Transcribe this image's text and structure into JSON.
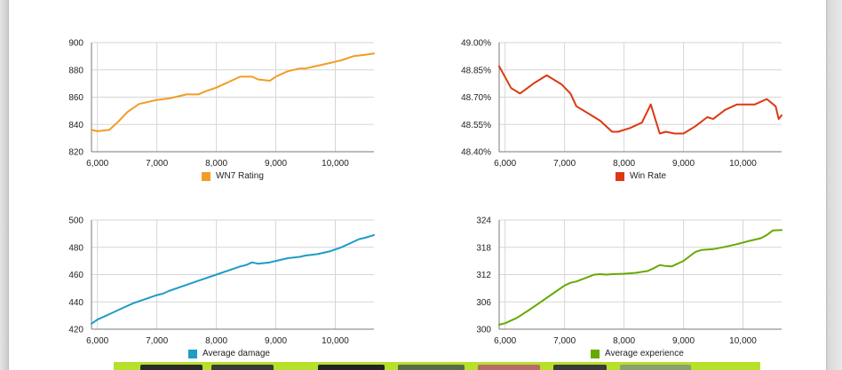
{
  "chart_data": [
    {
      "type": "line",
      "series": [
        {
          "name": "WN7 Rating",
          "color": "#f29c26",
          "x": [
            5900,
            6000,
            6200,
            6350,
            6500,
            6700,
            7000,
            7200,
            7300,
            7500,
            7700,
            7800,
            8000,
            8200,
            8400,
            8600,
            8700,
            8900,
            9000,
            9200,
            9400,
            9500,
            9700,
            9900,
            10100,
            10300,
            10500,
            10650
          ],
          "y": [
            836,
            835,
            836,
            842,
            849,
            855,
            858,
            859,
            860,
            862,
            862,
            864,
            867,
            871,
            875,
            875,
            873,
            872,
            875,
            879,
            881,
            881,
            883,
            885,
            887,
            890,
            891,
            892
          ]
        }
      ],
      "xlim": [
        5900,
        10650
      ],
      "ylim": [
        820,
        900
      ],
      "xticks": [
        6000,
        7000,
        8000,
        9000,
        10000
      ],
      "yticks": [
        820,
        840,
        860,
        880,
        900
      ],
      "xtick_labels": [
        "6,000",
        "7,000",
        "8,000",
        "9,000",
        "10,000"
      ],
      "ytick_labels": [
        "820",
        "840",
        "860",
        "880",
        "900"
      ],
      "legend": "bottom"
    },
    {
      "type": "line",
      "series": [
        {
          "name": "Win Rate",
          "color": "#dc3912",
          "x": [
            5900,
            6100,
            6250,
            6500,
            6700,
            6950,
            7100,
            7200,
            7400,
            7600,
            7800,
            7900,
            8100,
            8300,
            8450,
            8600,
            8700,
            8850,
            9000,
            9200,
            9400,
            9500,
            9700,
            9900,
            10200,
            10400,
            10550,
            10600,
            10650
          ],
          "y": [
            48.87,
            48.75,
            48.72,
            48.78,
            48.82,
            48.77,
            48.72,
            48.65,
            48.61,
            48.57,
            48.51,
            48.51,
            48.53,
            48.56,
            48.66,
            48.5,
            48.51,
            48.5,
            48.5,
            48.54,
            48.59,
            48.58,
            48.63,
            48.66,
            48.66,
            48.69,
            48.65,
            48.58,
            48.6
          ]
        }
      ],
      "xlim": [
        5900,
        10650
      ],
      "ylim": [
        48.4,
        49.0
      ],
      "xticks": [
        6000,
        7000,
        8000,
        9000,
        10000
      ],
      "yticks": [
        48.4,
        48.55,
        48.7,
        48.85,
        49.0
      ],
      "xtick_labels": [
        "6,000",
        "7,000",
        "8,000",
        "9,000",
        "10,000"
      ],
      "ytick_labels": [
        "48.40%",
        "48.55%",
        "48.70%",
        "48.85%",
        "49.00%"
      ],
      "legend": "bottom"
    },
    {
      "type": "line",
      "series": [
        {
          "name": "Average damage",
          "color": "#1f9bc7",
          "x": [
            5900,
            6000,
            6200,
            6400,
            6600,
            6800,
            7000,
            7100,
            7200,
            7400,
            7600,
            7800,
            8000,
            8200,
            8400,
            8500,
            8600,
            8700,
            8900,
            9000,
            9200,
            9400,
            9500,
            9700,
            9900,
            10100,
            10300,
            10400,
            10500,
            10650
          ],
          "y": [
            424,
            427,
            431,
            435,
            439,
            442,
            445,
            446,
            448,
            451,
            454,
            457,
            460,
            463,
            466,
            467,
            469,
            468,
            469,
            470,
            472,
            473,
            474,
            475,
            477,
            480,
            484,
            486,
            487,
            489
          ]
        }
      ],
      "xlim": [
        5900,
        10650
      ],
      "ylim": [
        420,
        500
      ],
      "xticks": [
        6000,
        7000,
        8000,
        9000,
        10000
      ],
      "yticks": [
        420,
        440,
        460,
        480,
        500
      ],
      "xtick_labels": [
        "6,000",
        "7,000",
        "8,000",
        "9,000",
        "10,000"
      ],
      "ytick_labels": [
        "420",
        "440",
        "460",
        "480",
        "500"
      ],
      "legend": "bottom"
    },
    {
      "type": "line",
      "series": [
        {
          "name": "Average experience",
          "color": "#66aa00",
          "x": [
            5900,
            6000,
            6200,
            6400,
            6600,
            6800,
            7000,
            7100,
            7200,
            7400,
            7500,
            7600,
            7700,
            7800,
            8000,
            8200,
            8400,
            8500,
            8600,
            8700,
            8800,
            9000,
            9100,
            9200,
            9300,
            9500,
            9700,
            9900,
            10100,
            10300,
            10400,
            10500,
            10650
          ],
          "y": [
            301,
            301.3,
            302.5,
            304.2,
            306,
            307.8,
            309.6,
            310.2,
            310.5,
            311.5,
            312,
            312.1,
            312,
            312.1,
            312.2,
            312.4,
            312.8,
            313.4,
            314.1,
            313.9,
            313.8,
            315,
            316,
            317,
            317.4,
            317.6,
            318.1,
            318.7,
            319.4,
            320,
            320.7,
            321.7,
            321.8
          ]
        }
      ],
      "xlim": [
        5900,
        10650
      ],
      "ylim": [
        300,
        324
      ],
      "xticks": [
        6000,
        7000,
        8000,
        9000,
        10000
      ],
      "yticks": [
        300,
        306,
        312,
        318,
        324
      ],
      "xtick_labels": [
        "6,000",
        "7,000",
        "8,000",
        "9,000",
        "10,000"
      ],
      "ytick_labels": [
        "300",
        "306",
        "312",
        "318",
        "324"
      ],
      "legend": "bottom"
    }
  ]
}
